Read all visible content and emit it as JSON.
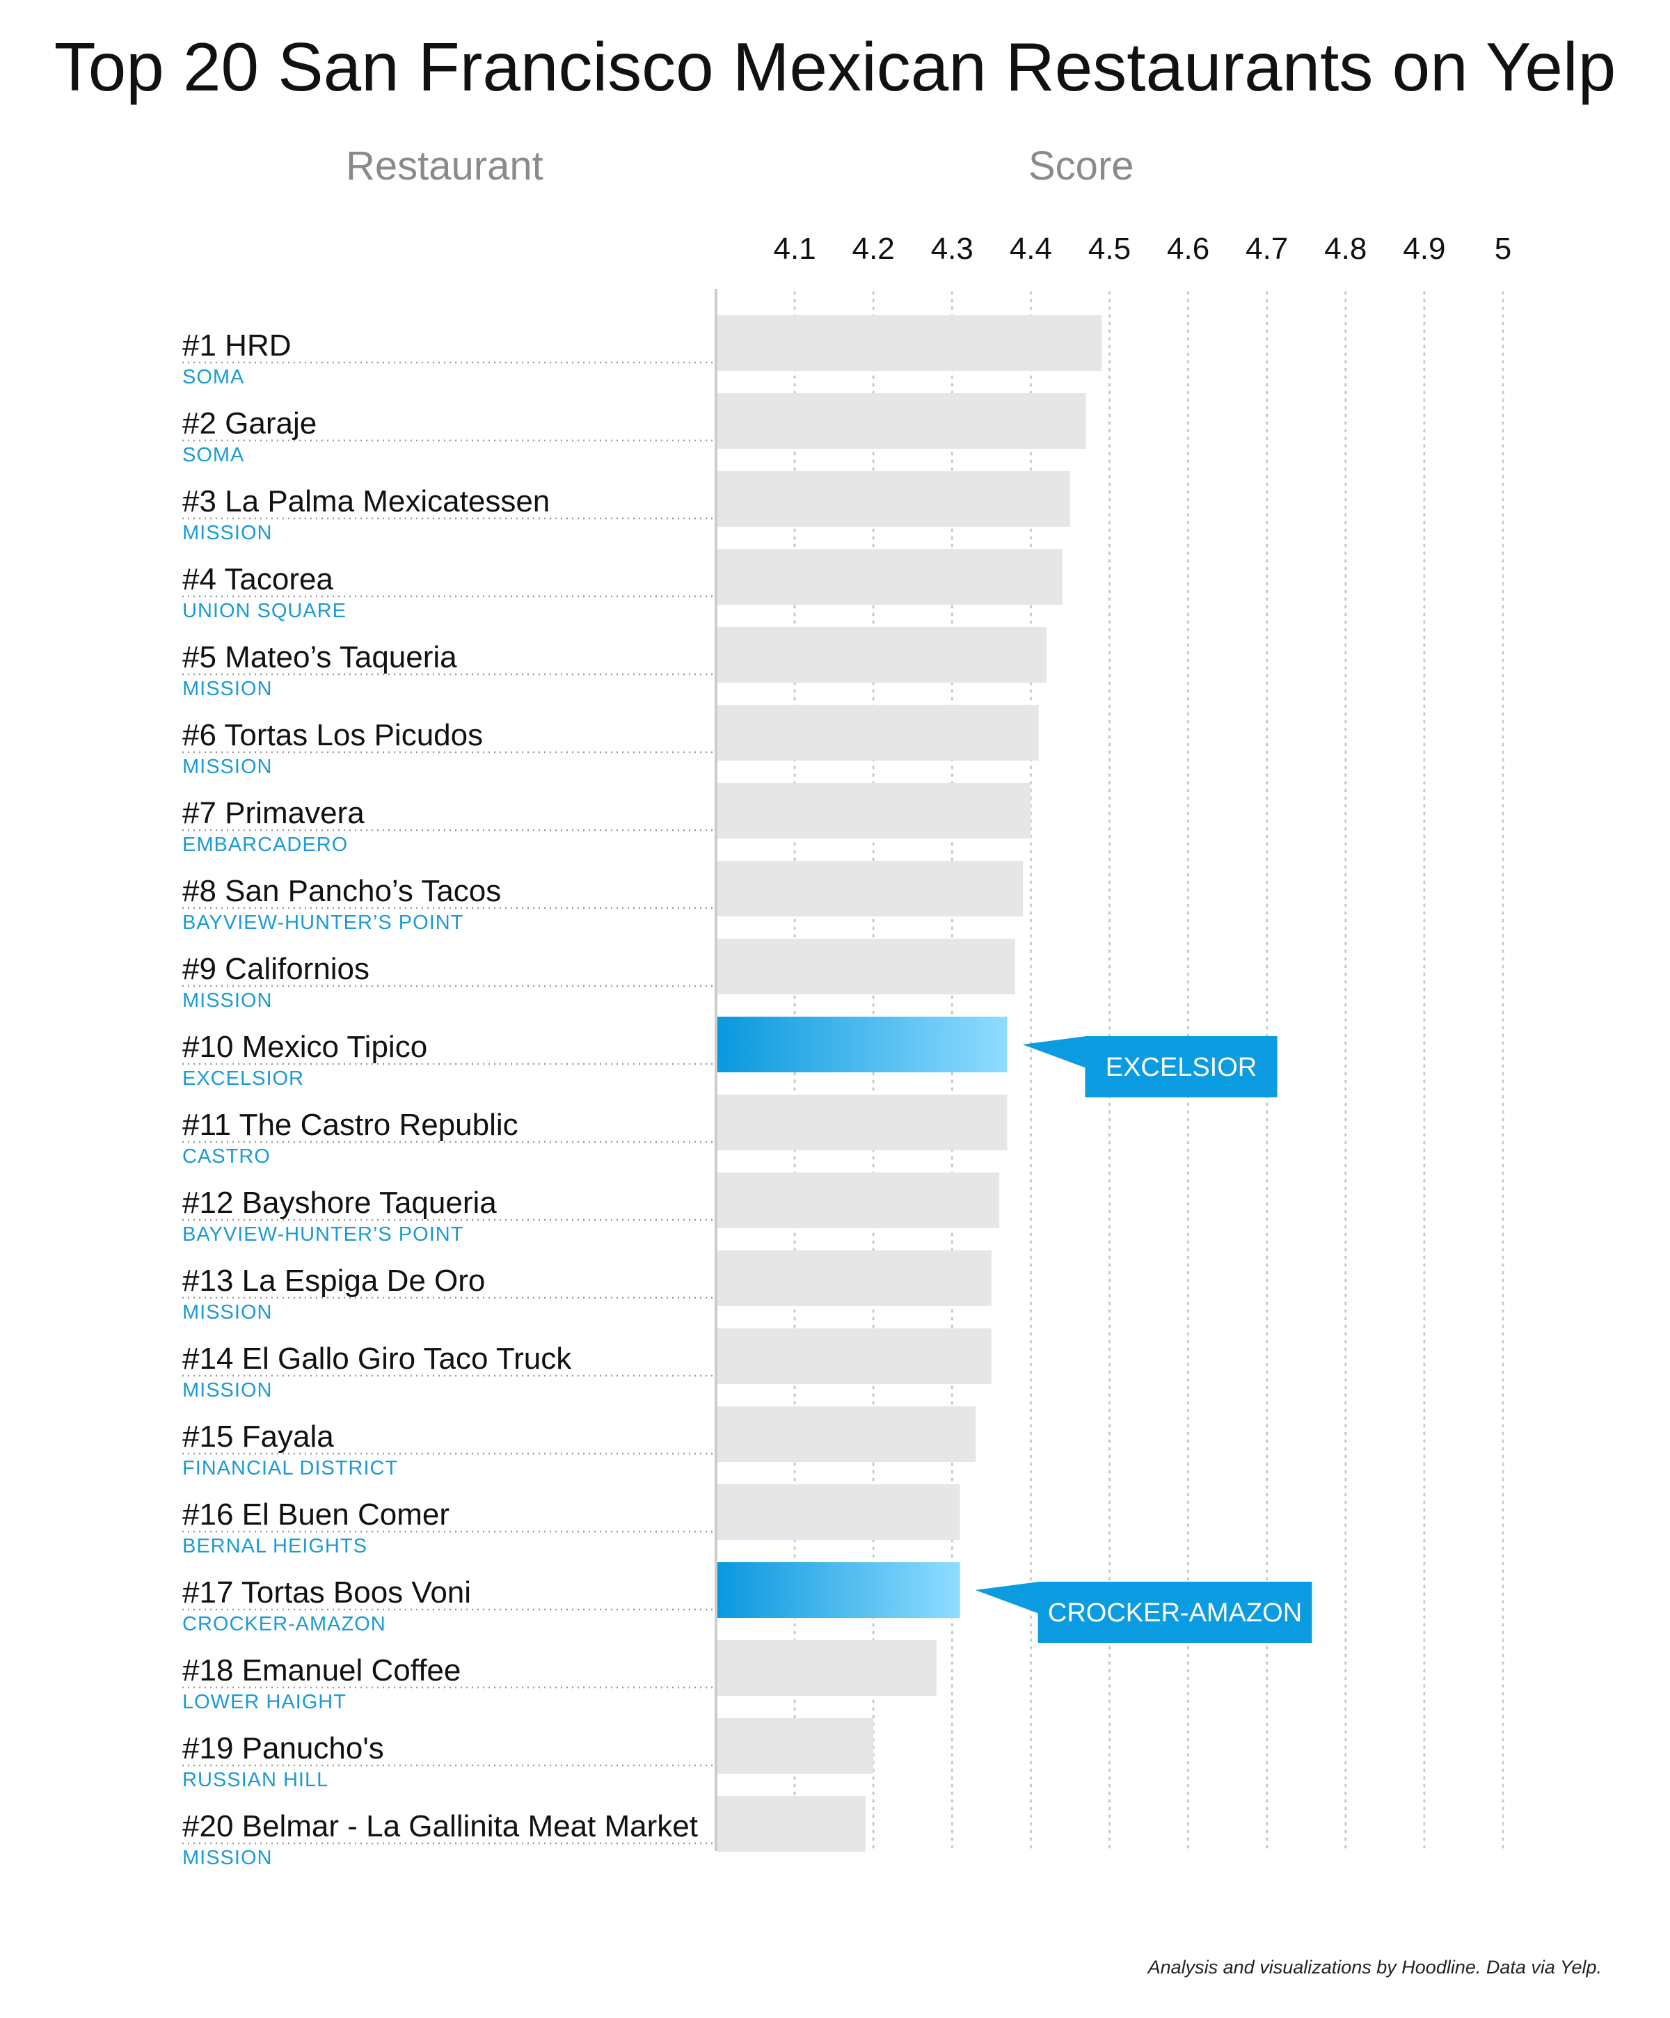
{
  "title": "Top 20 San Francisco Mexican Restaurants on Yelp",
  "column_headers": {
    "restaurant": "Restaurant",
    "score": "Score"
  },
  "credit": "Analysis and visualizations by Hoodline. Data via Yelp.",
  "colors": {
    "bar": "#e6e6e6",
    "highlight_start": "#0a98dd",
    "highlight_end": "#8fdcff",
    "callout": "#0a9be0",
    "neighborhood": "#1a9ad6",
    "axis": "#cccccc"
  },
  "chart_data": {
    "type": "bar",
    "orientation": "horizontal",
    "xlim": [
      4.0,
      5.0
    ],
    "x_ticks": [
      {
        "value": 4.1,
        "label": "4.1"
      },
      {
        "value": 4.2,
        "label": "4.2"
      },
      {
        "value": 4.3,
        "label": "4.3"
      },
      {
        "value": 4.4,
        "label": "4.4"
      },
      {
        "value": 4.5,
        "label": "4.5"
      },
      {
        "value": 4.6,
        "label": "4.6"
      },
      {
        "value": 4.7,
        "label": "4.7"
      },
      {
        "value": 4.8,
        "label": "4.8"
      },
      {
        "value": 4.9,
        "label": "4.9"
      },
      {
        "value": 5.0,
        "label": "5"
      }
    ],
    "grid": "vertical dotted",
    "rows": [
      {
        "name": "#1 HRD",
        "neighborhood": "SOMA",
        "value": 4.49,
        "highlight": false
      },
      {
        "name": "#2 Garaje",
        "neighborhood": "SOMA",
        "value": 4.47,
        "highlight": false
      },
      {
        "name": "#3 La Palma Mexicatessen",
        "neighborhood": "MISSION",
        "value": 4.45,
        "highlight": false
      },
      {
        "name": "#4 Tacorea",
        "neighborhood": "UNION SQUARE",
        "value": 4.44,
        "highlight": false
      },
      {
        "name": "#5 Mateo’s Taqueria",
        "neighborhood": "MISSION",
        "value": 4.42,
        "highlight": false
      },
      {
        "name": "#6 Tortas Los Picudos",
        "neighborhood": "MISSION",
        "value": 4.41,
        "highlight": false
      },
      {
        "name": "#7 Primavera",
        "neighborhood": "EMBARCADERO",
        "value": 4.4,
        "highlight": false
      },
      {
        "name": "#8 San Pancho’s Tacos",
        "neighborhood": "BAYVIEW-HUNTER’S POINT",
        "value": 4.39,
        "highlight": false
      },
      {
        "name": "#9 Californios",
        "neighborhood": "MISSION",
        "value": 4.38,
        "highlight": false
      },
      {
        "name": "#10 Mexico Tipico",
        "neighborhood": "EXCELSIOR",
        "value": 4.37,
        "highlight": true,
        "callout": "EXCELSIOR"
      },
      {
        "name": "#11 The Castro Republic",
        "neighborhood": "CASTRO",
        "value": 4.37,
        "highlight": false
      },
      {
        "name": "#12 Bayshore Taqueria",
        "neighborhood": "BAYVIEW-HUNTER’S POINT",
        "value": 4.36,
        "highlight": false
      },
      {
        "name": "#13 La Espiga De Oro",
        "neighborhood": "MISSION",
        "value": 4.35,
        "highlight": false
      },
      {
        "name": "#14 El Gallo Giro Taco Truck",
        "neighborhood": "MISSION",
        "value": 4.35,
        "highlight": false
      },
      {
        "name": "#15 Fayala",
        "neighborhood": "FINANCIAL DISTRICT",
        "value": 4.33,
        "highlight": false
      },
      {
        "name": "#16 El Buen Comer",
        "neighborhood": "BERNAL HEIGHTS",
        "value": 4.31,
        "highlight": false
      },
      {
        "name": "#17 Tortas Boos Voni",
        "neighborhood": "CROCKER-AMAZON",
        "value": 4.31,
        "highlight": true,
        "callout": "CROCKER-AMAZON"
      },
      {
        "name": "#18 Emanuel Coffee",
        "neighborhood": "LOWER HAIGHT",
        "value": 4.28,
        "highlight": false
      },
      {
        "name": "#19 Panucho's",
        "neighborhood": "RUSSIAN HILL",
        "value": 4.2,
        "highlight": false
      },
      {
        "name": "#20 Belmar - La Gallinita Meat Market",
        "neighborhood": "MISSION",
        "value": 4.19,
        "highlight": false
      }
    ]
  }
}
